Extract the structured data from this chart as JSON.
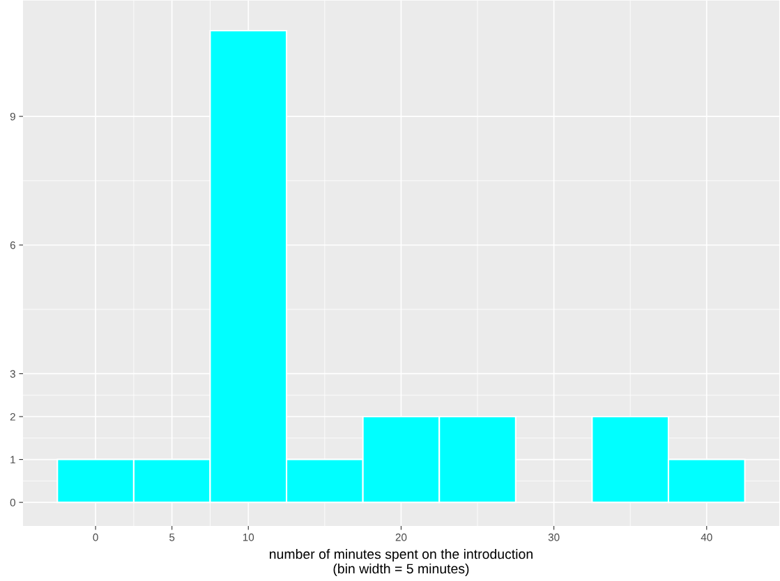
{
  "chart_data": {
    "type": "histogram",
    "xlabel": "number of minutes spent on the introduction\n(bin width = 5 minutes)",
    "bins": [
      -2.5,
      2.5,
      7.5,
      12.5,
      17.5,
      22.5,
      27.5,
      32.5,
      37.5,
      42.5
    ],
    "values": [
      1,
      1,
      11,
      1,
      2,
      2,
      0,
      2,
      1
    ],
    "color": "#00ffff",
    "xlim": [
      -4.75,
      44.75
    ],
    "ylim": [
      -0.55,
      11.7
    ],
    "xticks": [
      0,
      5,
      10,
      20,
      30,
      40
    ],
    "yticks": [
      0,
      1,
      2,
      3,
      6,
      9
    ],
    "grid": true
  }
}
